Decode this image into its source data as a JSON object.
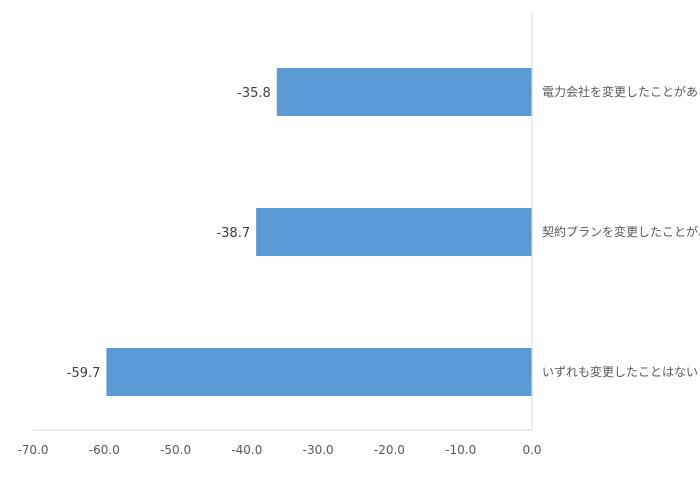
{
  "chart_data": {
    "type": "bar",
    "orientation": "horizontal",
    "categories": [
      "電力会社を変更したことがある",
      "契約プランを変更したことがある",
      "いずれも変更したことはない"
    ],
    "values": [
      -35.8,
      -38.7,
      -59.7
    ],
    "value_labels": [
      "-35.8",
      "-38.7",
      "-59.7"
    ],
    "xlim": [
      -70.0,
      0.0
    ],
    "x_ticks": [
      -70,
      -60,
      -50,
      -40,
      -30,
      -20,
      -10,
      0
    ],
    "x_tick_labels": [
      "-70.0",
      "-60.0",
      "-50.0",
      "-40.0",
      "-30.0",
      "-20.0",
      "-10.0",
      "0.0"
    ],
    "bar_color": "#5B9BD5",
    "axis_color": "#D9D9D9",
    "grid": false,
    "legend": "none"
  }
}
